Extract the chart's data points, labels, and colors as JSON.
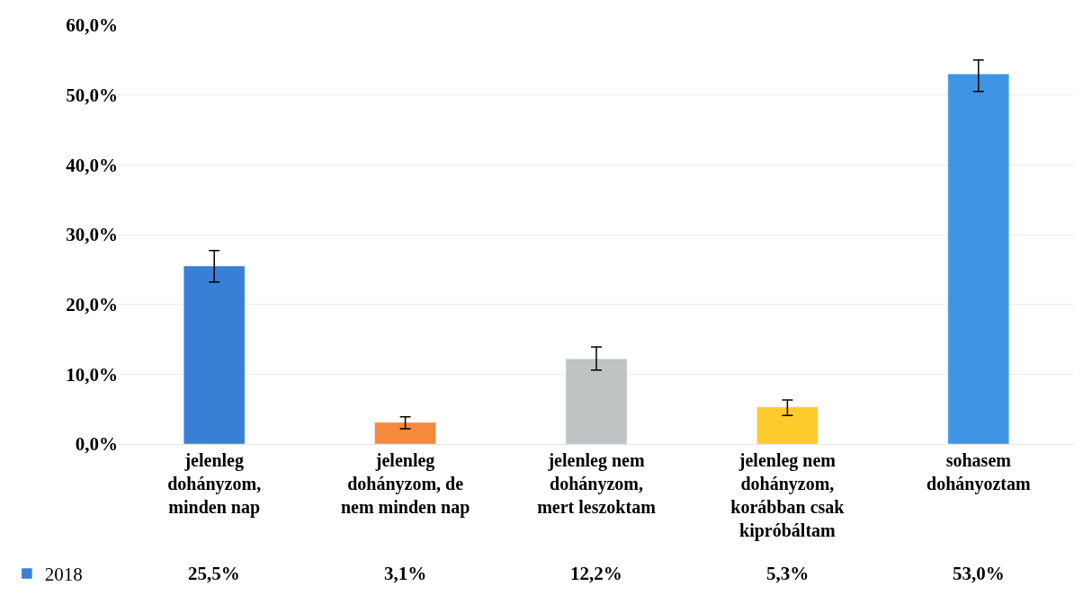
{
  "chart_data": {
    "type": "bar",
    "categories": [
      "jelenleg\ndohányzom,\nminden nap",
      "jelenleg\ndohányzom, de\nnem minden nap",
      "jelenleg nem\ndohányzom,\nmert leszoktam",
      "jelenleg nem\ndohányzom,\nkorábban csak\nkipróbáltam",
      "sohasem\ndohányoztam"
    ],
    "series": [
      {
        "name": "2018",
        "colors": [
          "#3a7fd6",
          "#f58a3c",
          "#bfc3c3",
          "#fdcb2c",
          "#3d95e3"
        ],
        "values": [
          25.5,
          3.1,
          12.2,
          5.3,
          53.0
        ],
        "value_labels": [
          "25,5%",
          "3,1%",
          "12,2%",
          "5,3%",
          "53,0%"
        ],
        "errors": [
          [
            23.2,
            27.7
          ],
          [
            2.2,
            3.9
          ],
          [
            10.6,
            13.9
          ],
          [
            4.1,
            6.3
          ],
          [
            50.5,
            55.0
          ]
        ]
      }
    ],
    "ylim": [
      0,
      60
    ],
    "yticks": [
      {
        "value": 0,
        "label": "0,0%"
      },
      {
        "value": 10,
        "label": "10,0%"
      },
      {
        "value": 20,
        "label": "20,0%"
      },
      {
        "value": 30,
        "label": "30,0%"
      },
      {
        "value": 40,
        "label": "40,0%"
      },
      {
        "value": 50,
        "label": "50,0%"
      },
      {
        "value": 60,
        "label": "60,0%"
      }
    ],
    "grid": "y",
    "legend": "bottom left"
  }
}
